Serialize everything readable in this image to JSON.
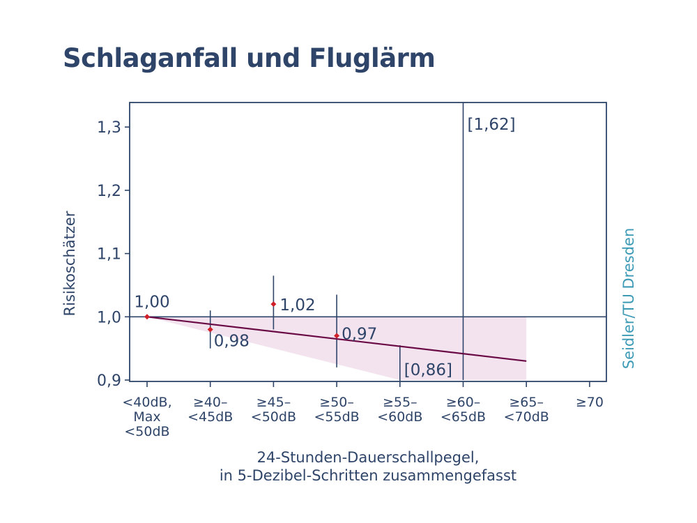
{
  "title": "Schlaganfall und Fluglärm",
  "credit": "Seidler/TU Dresden",
  "colors": {
    "title": "#2e4468",
    "axis": "#2e4468",
    "point": "#d0202a",
    "trend": "#6a0a45",
    "band": "#f3e3ef",
    "credit": "#3d9ab5"
  },
  "chart_data": {
    "type": "scatter",
    "title": "Schlaganfall und Fluglärm",
    "ylabel": "Risikoschätzer",
    "xlabel_lines": [
      "24-Stunden-Dauerschallpegel,",
      "in 5-Dezibel-Schritten zusammengefasst"
    ],
    "ylim": [
      0.9,
      1.32
    ],
    "yticks": [
      {
        "value": 0.9,
        "label": "0,9"
      },
      {
        "value": 1.0,
        "label": "1,0"
      },
      {
        "value": 1.1,
        "label": "1,1"
      },
      {
        "value": 1.2,
        "label": "1,2"
      },
      {
        "value": 1.3,
        "label": "1,3"
      }
    ],
    "reference_line": 1.0,
    "categories": [
      [
        "<40dB,",
        "Max",
        "<50dB"
      ],
      [
        "≥40–",
        "<45dB"
      ],
      [
        "≥45–",
        "<50dB"
      ],
      [
        "≥50–",
        "<55dB"
      ],
      [
        "≥55–",
        "<60dB"
      ],
      [
        "≥60–",
        "<65dB"
      ],
      [
        "≥65–",
        "<70dB"
      ],
      [
        "≥70"
      ]
    ],
    "points": [
      {
        "category_index": 0,
        "value": 1.0,
        "label": "1,00"
      },
      {
        "category_index": 1,
        "value": 0.98,
        "ci": [
          0.95,
          1.01
        ],
        "label": "0,98"
      },
      {
        "category_index": 2,
        "value": 1.02,
        "ci": [
          0.98,
          1.065
        ],
        "label": "1,02"
      },
      {
        "category_index": 3,
        "value": 0.97,
        "ci": [
          0.92,
          1.035
        ],
        "label": "0,97"
      }
    ],
    "interval_only": [
      {
        "category_index": 4,
        "ci": [
          0.86,
          0.955
        ],
        "lower_label": "[0,86]"
      },
      {
        "category_index": 5,
        "ci": [
          0.9,
          1.62
        ],
        "upper_label": "[1,62]"
      }
    ],
    "trend": {
      "from": {
        "category_index": 0,
        "value": 1.0
      },
      "to": {
        "category_index": 6,
        "value": 0.93
      }
    },
    "band": {
      "upper": 1.0,
      "lower_from": {
        "category_index": 0,
        "value": 1.0
      },
      "lower_to": {
        "category_index": 4,
        "value": 0.9
      },
      "end_index": 6
    },
    "grid": false,
    "legend": "none"
  }
}
